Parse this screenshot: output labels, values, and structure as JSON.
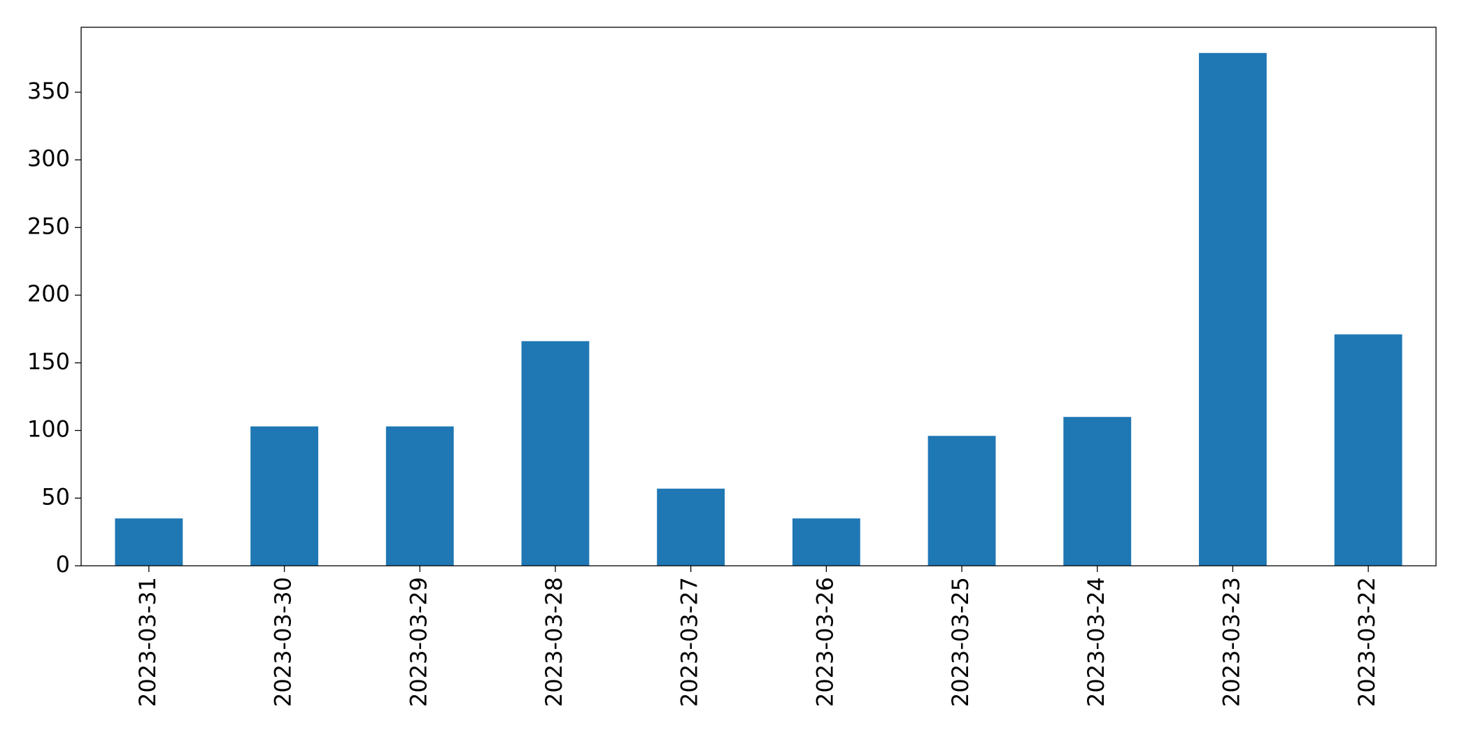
{
  "chart_data": {
    "type": "bar",
    "categories": [
      "2023-03-31",
      "2023-03-30",
      "2023-03-29",
      "2023-03-28",
      "2023-03-27",
      "2023-03-26",
      "2023-03-25",
      "2023-03-24",
      "2023-03-23",
      "2023-03-22"
    ],
    "values": [
      35,
      103,
      103,
      166,
      57,
      35,
      96,
      110,
      379,
      171
    ],
    "color": "#1f77b4",
    "ylim": [
      0,
      398
    ],
    "yticks": [
      0,
      50,
      100,
      150,
      200,
      250,
      300,
      350
    ],
    "grid": false
  }
}
